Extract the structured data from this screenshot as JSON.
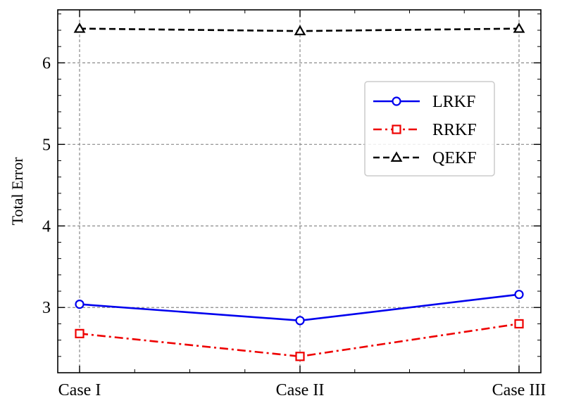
{
  "chart_data": {
    "type": "line",
    "categories": [
      "Case I",
      "Case II",
      "Case III"
    ],
    "ylabel": "Total Error",
    "ylim": [
      2.2,
      6.65
    ],
    "yticks": [
      3,
      4,
      5,
      6
    ],
    "grid": true,
    "legend_position": "right",
    "series": [
      {
        "name": "LRKF",
        "values": [
          3.04,
          2.84,
          3.16
        ],
        "color": "#0000ee",
        "line": "solid",
        "marker": "circle"
      },
      {
        "name": "RRKF",
        "values": [
          2.68,
          2.4,
          2.8
        ],
        "color": "#ee0000",
        "line": "dashdot",
        "marker": "square"
      },
      {
        "name": "QEKF",
        "values": [
          6.42,
          6.39,
          6.42
        ],
        "color": "#000000",
        "line": "dashed",
        "marker": "triangle"
      }
    ]
  }
}
